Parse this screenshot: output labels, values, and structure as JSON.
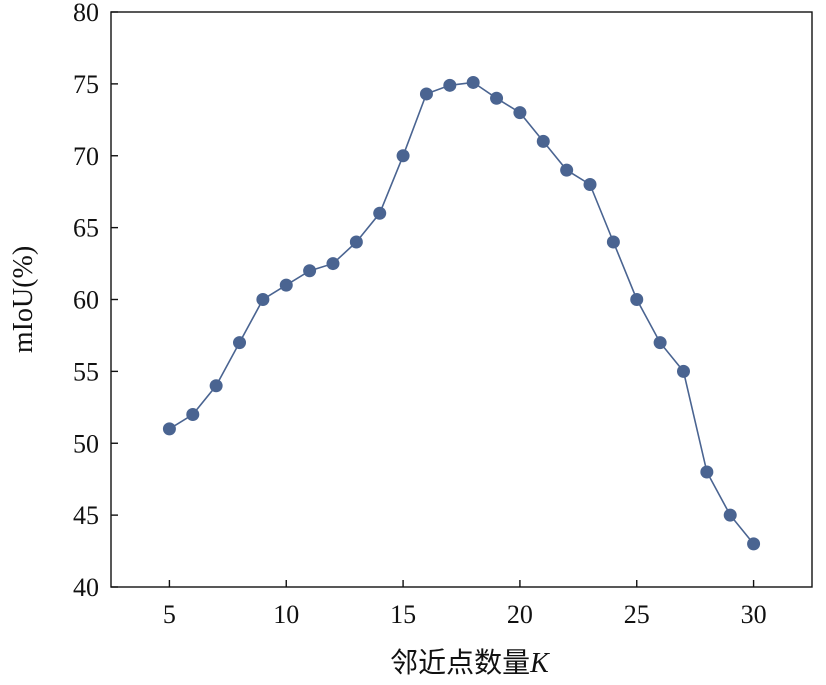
{
  "chart_data": {
    "type": "line",
    "title": "",
    "xlabel": "邻近点数量",
    "xlabel_var": "K",
    "ylabel": "mIoU(%)",
    "xlim": [
      2.5,
      32.5
    ],
    "ylim": [
      40,
      80
    ],
    "xticks": [
      5,
      10,
      15,
      20,
      25,
      30
    ],
    "yticks": [
      40,
      45,
      50,
      55,
      60,
      65,
      70,
      75,
      80
    ],
    "xtick_labels": [
      "5",
      "10",
      "15",
      "20",
      "25",
      "30"
    ],
    "ytick_labels": [
      "40",
      "45",
      "50",
      "55",
      "60",
      "65",
      "70",
      "75",
      "80"
    ],
    "grid": false,
    "legend": "none",
    "series": [
      {
        "color": "#4a6491",
        "marker": "circle",
        "x": [
          5,
          6,
          7,
          8,
          9,
          10,
          11,
          12,
          13,
          14,
          15,
          16,
          17,
          18,
          19,
          20,
          21,
          22,
          23,
          24,
          25,
          26,
          27,
          28,
          29,
          30
        ],
        "y": [
          51,
          52,
          54,
          57,
          60,
          61,
          62,
          62.5,
          64,
          66,
          70,
          74.3,
          74.9,
          75.1,
          74,
          73,
          71,
          69,
          68,
          64,
          60,
          57,
          55,
          48,
          45,
          43
        ]
      }
    ]
  }
}
